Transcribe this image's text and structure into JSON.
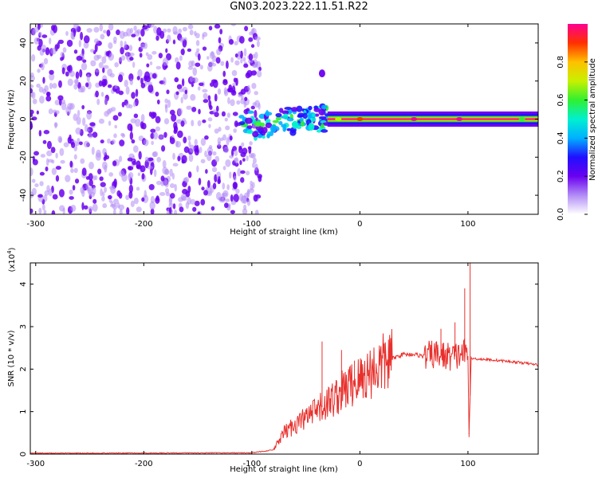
{
  "title": "GN03.2023.222.11.51.R22",
  "colors": {
    "snr_line": "#e8302c",
    "axis": "#000000",
    "spectral_noise": "#7a2bea",
    "spectral_colormap": [
      "#ffffff",
      "#b28cf6",
      "#6a00f0",
      "#2010ff",
      "#00b0ff",
      "#00f0d0",
      "#30f030",
      "#c8f000",
      "#ffc000",
      "#ff3000",
      "#ff0090"
    ]
  },
  "chart_data": [
    {
      "type": "heatmap",
      "xlabel": "Height of straight line (km)",
      "ylabel": "Frequency (Hz)",
      "xlim": [
        -305,
        165
      ],
      "ylim": [
        -50,
        50
      ],
      "x_ticks": [
        -300,
        -200,
        -100,
        0,
        100
      ],
      "x_tick_labels": [
        "-300",
        "-200",
        "-100",
        "0",
        "100"
      ],
      "y_ticks": [
        -40,
        -20,
        0,
        20,
        40
      ],
      "y_tick_labels": [
        "-40",
        "-20",
        "0",
        "20",
        "40"
      ],
      "colorbar": {
        "label": "Normalized spectral amplitude",
        "range": [
          0,
          1
        ],
        "ticks": [
          0.0,
          0.2,
          0.4,
          0.6,
          0.8
        ],
        "tick_labels": [
          "0.0",
          "0.2",
          "0.4",
          "0.6",
          "0.8"
        ]
      },
      "regions": {
        "noise_x_range": [
          -305,
          -100
        ],
        "transition_x_range": [
          -110,
          -30
        ],
        "signal_x_range": [
          -30,
          165
        ],
        "signal_frequency": 0
      },
      "features": [
        {
          "x": -80,
          "y": -5,
          "amplitude": 0.4
        },
        {
          "x": -60,
          "y": -3,
          "amplitude": 0.45
        },
        {
          "x": -45,
          "y": -4,
          "amplitude": 0.5
        },
        {
          "x": -35,
          "y": 24,
          "amplitude": 0.15
        },
        {
          "x": -20,
          "y": 0,
          "amplitude": 0.7
        },
        {
          "x": 0,
          "y": 0,
          "amplitude": 0.9
        },
        {
          "x": 50,
          "y": 0,
          "amplitude": 0.95
        },
        {
          "x": 92,
          "y": 0,
          "amplitude": 1.0
        },
        {
          "x": 150,
          "y": 0,
          "amplitude": 0.6
        }
      ]
    },
    {
      "type": "line",
      "xlabel": "Height of straight line (km)",
      "ylabel": "SNR (10 * v/v)",
      "scale_label": "(x10",
      "scale_exponent": "4",
      "scale_suffix": ")",
      "xlim": [
        -305,
        165
      ],
      "ylim": [
        0,
        4.5
      ],
      "x_ticks": [
        -300,
        -200,
        -100,
        0,
        100
      ],
      "x_tick_labels": [
        "-300",
        "-200",
        "-100",
        "0",
        "100"
      ],
      "y_ticks": [
        0,
        1,
        2,
        3,
        4
      ],
      "y_tick_labels": [
        "0",
        "1",
        "2",
        "3",
        "4"
      ],
      "series": [
        {
          "x": [
            -305,
            -100,
            -80,
            -70,
            -60,
            -50,
            -40,
            -30,
            -20,
            -10,
            0,
            10,
            20,
            30,
            40,
            50,
            60,
            70,
            80,
            90,
            95,
            100,
            101,
            103,
            110,
            130,
            150,
            165
          ],
          "y": [
            0.02,
            0.03,
            0.1,
            0.5,
            0.7,
            0.85,
            1.0,
            1.2,
            1.4,
            1.6,
            1.75,
            1.95,
            2.1,
            2.25,
            2.35,
            2.35,
            2.3,
            2.35,
            2.3,
            2.3,
            2.4,
            2.3,
            0.5,
            2.25,
            2.24,
            2.2,
            2.15,
            2.1
          ],
          "spikes": [
            {
              "x": -35,
              "y": 2.65
            },
            {
              "x": -17,
              "y": 2.45
            },
            {
              "x": -5,
              "y": 2.2
            },
            {
              "x": 75,
              "y": 2.95
            },
            {
              "x": 88,
              "y": 3.1
            },
            {
              "x": 97,
              "y": 3.9
            },
            {
              "x": 102,
              "y": 4.5
            },
            {
              "x": 101,
              "y": 0.4
            }
          ]
        }
      ]
    }
  ]
}
